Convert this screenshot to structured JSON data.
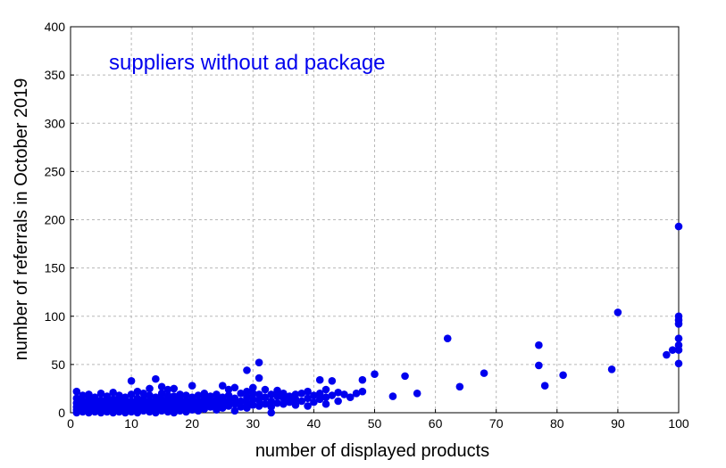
{
  "chart_data": {
    "type": "scatter",
    "title": "",
    "annotation": "suppliers without ad package",
    "xlabel": "number of displayed products",
    "ylabel": "number of referrals in October 2019",
    "xlim": [
      0,
      100
    ],
    "ylim": [
      0,
      400
    ],
    "xticks": [
      0,
      10,
      20,
      30,
      40,
      50,
      60,
      70,
      80,
      90,
      100
    ],
    "yticks": [
      0,
      50,
      100,
      150,
      200,
      250,
      300,
      350,
      400
    ],
    "grid": true,
    "colors": {
      "marker": "#0000ee",
      "annotation": "#0000ee",
      "grid": "#b8b8b8"
    },
    "series": [
      {
        "points": [
          [
            1,
            0
          ],
          [
            1,
            3
          ],
          [
            1,
            6
          ],
          [
            1,
            10
          ],
          [
            1,
            15
          ],
          [
            1,
            22
          ],
          [
            2,
            1
          ],
          [
            2,
            4
          ],
          [
            2,
            8
          ],
          [
            2,
            12
          ],
          [
            2,
            18
          ],
          [
            3,
            0
          ],
          [
            3,
            2
          ],
          [
            3,
            5
          ],
          [
            3,
            9
          ],
          [
            3,
            14
          ],
          [
            3,
            19
          ],
          [
            4,
            1
          ],
          [
            4,
            3
          ],
          [
            4,
            7
          ],
          [
            4,
            11
          ],
          [
            4,
            16
          ],
          [
            5,
            0
          ],
          [
            5,
            2
          ],
          [
            5,
            6
          ],
          [
            5,
            9
          ],
          [
            5,
            13
          ],
          [
            5,
            20
          ],
          [
            6,
            1
          ],
          [
            6,
            4
          ],
          [
            6,
            8
          ],
          [
            6,
            12
          ],
          [
            6,
            17
          ],
          [
            7,
            0
          ],
          [
            7,
            3
          ],
          [
            7,
            6
          ],
          [
            7,
            10
          ],
          [
            7,
            14
          ],
          [
            7,
            21
          ],
          [
            8,
            1
          ],
          [
            8,
            5
          ],
          [
            8,
            9
          ],
          [
            8,
            13
          ],
          [
            8,
            18
          ],
          [
            9,
            0
          ],
          [
            9,
            2
          ],
          [
            9,
            7
          ],
          [
            9,
            11
          ],
          [
            9,
            16
          ],
          [
            10,
            1
          ],
          [
            10,
            4
          ],
          [
            10,
            8
          ],
          [
            10,
            12
          ],
          [
            10,
            19
          ],
          [
            10,
            33
          ],
          [
            11,
            0
          ],
          [
            11,
            3
          ],
          [
            11,
            6
          ],
          [
            11,
            10
          ],
          [
            11,
            15
          ],
          [
            11,
            22
          ],
          [
            12,
            2
          ],
          [
            12,
            5
          ],
          [
            12,
            9
          ],
          [
            12,
            14
          ],
          [
            12,
            20
          ],
          [
            13,
            1
          ],
          [
            13,
            4
          ],
          [
            13,
            8
          ],
          [
            13,
            12
          ],
          [
            13,
            18
          ],
          [
            13,
            25
          ],
          [
            14,
            0
          ],
          [
            14,
            3
          ],
          [
            14,
            7
          ],
          [
            14,
            11
          ],
          [
            14,
            16
          ],
          [
            14,
            35
          ],
          [
            15,
            2
          ],
          [
            15,
            6
          ],
          [
            15,
            10
          ],
          [
            15,
            14
          ],
          [
            15,
            20
          ],
          [
            15,
            27
          ],
          [
            16,
            1
          ],
          [
            16,
            4
          ],
          [
            16,
            8
          ],
          [
            16,
            13
          ],
          [
            16,
            18
          ],
          [
            16,
            24
          ],
          [
            17,
            0
          ],
          [
            17,
            3
          ],
          [
            17,
            7
          ],
          [
            17,
            11
          ],
          [
            17,
            17
          ],
          [
            17,
            25
          ],
          [
            18,
            2
          ],
          [
            18,
            5
          ],
          [
            18,
            9
          ],
          [
            18,
            14
          ],
          [
            18,
            19
          ],
          [
            19,
            1
          ],
          [
            19,
            4
          ],
          [
            19,
            8
          ],
          [
            19,
            12
          ],
          [
            19,
            18
          ],
          [
            20,
            3
          ],
          [
            20,
            6
          ],
          [
            20,
            11
          ],
          [
            20,
            16
          ],
          [
            20,
            28
          ],
          [
            21,
            2
          ],
          [
            21,
            7
          ],
          [
            21,
            12
          ],
          [
            21,
            18
          ],
          [
            22,
            4
          ],
          [
            22,
            9
          ],
          [
            22,
            14
          ],
          [
            22,
            20
          ],
          [
            23,
            6
          ],
          [
            23,
            11
          ],
          [
            23,
            17
          ],
          [
            24,
            3
          ],
          [
            24,
            8
          ],
          [
            24,
            13
          ],
          [
            24,
            19
          ],
          [
            25,
            5
          ],
          [
            25,
            10
          ],
          [
            25,
            16
          ],
          [
            25,
            28
          ],
          [
            26,
            7
          ],
          [
            26,
            12
          ],
          [
            26,
            18
          ],
          [
            26,
            24
          ],
          [
            27,
            2
          ],
          [
            27,
            9
          ],
          [
            27,
            15
          ],
          [
            27,
            26
          ],
          [
            28,
            6
          ],
          [
            28,
            12
          ],
          [
            28,
            20
          ],
          [
            29,
            5
          ],
          [
            29,
            10
          ],
          [
            29,
            16
          ],
          [
            29,
            22
          ],
          [
            29,
            44
          ],
          [
            30,
            8
          ],
          [
            30,
            14
          ],
          [
            30,
            20
          ],
          [
            30,
            26
          ],
          [
            31,
            7
          ],
          [
            31,
            13
          ],
          [
            31,
            19
          ],
          [
            31,
            36
          ],
          [
            31,
            52
          ],
          [
            32,
            9
          ],
          [
            32,
            16
          ],
          [
            32,
            24
          ],
          [
            33,
            0
          ],
          [
            33,
            6
          ],
          [
            33,
            12
          ],
          [
            33,
            19
          ],
          [
            34,
            10
          ],
          [
            34,
            17
          ],
          [
            34,
            23
          ],
          [
            35,
            9
          ],
          [
            35,
            15
          ],
          [
            35,
            20
          ],
          [
            36,
            11
          ],
          [
            36,
            17
          ],
          [
            37,
            8
          ],
          [
            37,
            14
          ],
          [
            37,
            19
          ],
          [
            38,
            12
          ],
          [
            38,
            20
          ],
          [
            39,
            7
          ],
          [
            39,
            15
          ],
          [
            39,
            22
          ],
          [
            40,
            11
          ],
          [
            40,
            18
          ],
          [
            41,
            14
          ],
          [
            41,
            20
          ],
          [
            41,
            34
          ],
          [
            42,
            9
          ],
          [
            42,
            16
          ],
          [
            42,
            24
          ],
          [
            43,
            18
          ],
          [
            43,
            33
          ],
          [
            44,
            12
          ],
          [
            44,
            21
          ],
          [
            45,
            19
          ],
          [
            46,
            16
          ],
          [
            47,
            20
          ],
          [
            48,
            22
          ],
          [
            48,
            34
          ],
          [
            50,
            40
          ],
          [
            53,
            17
          ],
          [
            55,
            38
          ],
          [
            57,
            20
          ],
          [
            62,
            77
          ],
          [
            64,
            27
          ],
          [
            68,
            41
          ],
          [
            77,
            49
          ],
          [
            77,
            70
          ],
          [
            78,
            28
          ],
          [
            81,
            39
          ],
          [
            89,
            45
          ],
          [
            90,
            104
          ],
          [
            98,
            60
          ],
          [
            99,
            65
          ],
          [
            100,
            51
          ],
          [
            100,
            65
          ],
          [
            100,
            70
          ],
          [
            100,
            77
          ],
          [
            100,
            92
          ],
          [
            100,
            96
          ],
          [
            100,
            100
          ],
          [
            100,
            193
          ]
        ]
      }
    ]
  }
}
